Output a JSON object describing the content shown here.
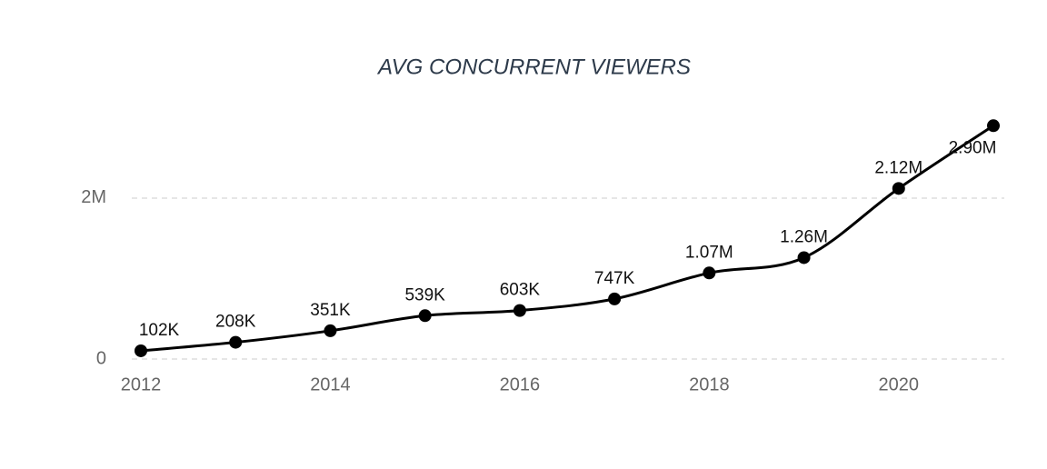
{
  "chart_data": {
    "type": "line",
    "title": "AVG CONCURRENT VIEWERS",
    "x": [
      2012,
      2013,
      2014,
      2015,
      2016,
      2017,
      2018,
      2019,
      2020,
      2021
    ],
    "series": [
      {
        "color": "#000000",
        "values": [
          102000,
          208000,
          351000,
          539000,
          603000,
          747000,
          1070000,
          1260000,
          2120000,
          2900000
        ],
        "value_labels": [
          "102K",
          "208K",
          "351K",
          "539K",
          "603K",
          "747K",
          "1.07M",
          "1.26M",
          "2.12M",
          "2.90M"
        ]
      }
    ],
    "xlim": [
      2012,
      2021
    ],
    "xticks": [
      2012,
      2014,
      2016,
      2018,
      2020
    ],
    "ylim": [
      0,
      3100000
    ],
    "yticks": [
      0,
      {
        "value": 2000000,
        "label": "2M"
      }
    ],
    "grid": true
  }
}
